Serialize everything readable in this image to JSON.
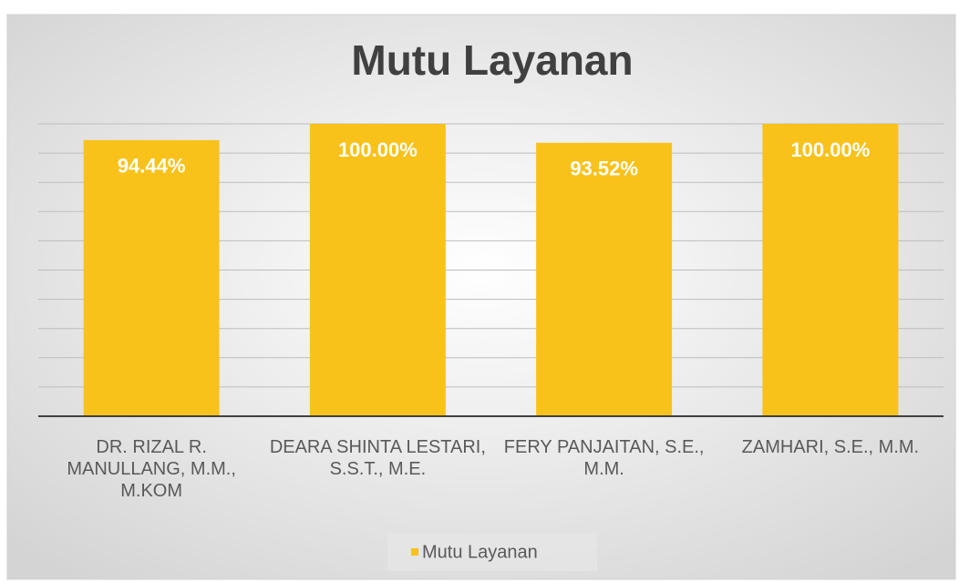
{
  "chart_data": {
    "type": "bar",
    "title": "Mutu Layanan",
    "categories": [
      "DR. RIZAL R. MANULLANG, M.M., M.KOM",
      "DEARA SHINTA LESTARI, S.S.T., M.E.",
      "FERY PANJAITAN, S.E., M.M.",
      "ZAMHARI, S.E., M.M."
    ],
    "series": [
      {
        "name": "Mutu Layanan",
        "color": "#F9C21A",
        "values": [
          94.44,
          100,
          93.52,
          100
        ],
        "value_labels": [
          "94.44%",
          "100.00%",
          "93.52%",
          "100.00%"
        ]
      }
    ],
    "ylim": [
      0,
      100
    ],
    "yticks": [
      0,
      10,
      20,
      30,
      40,
      50,
      60,
      70,
      80,
      90,
      100
    ],
    "grid": true,
    "legend": "bottom"
  }
}
